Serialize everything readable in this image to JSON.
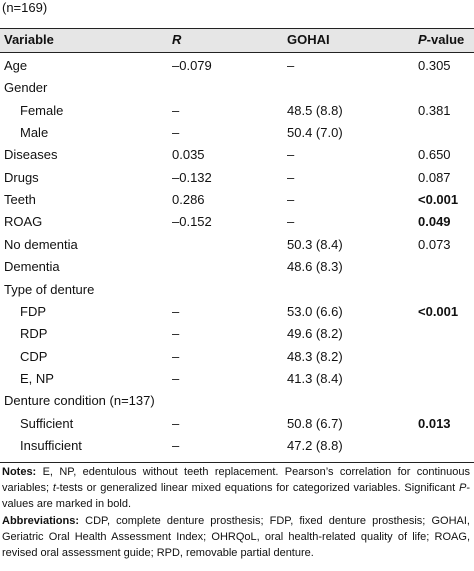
{
  "caption": "(n=169)",
  "header": [
    "Variable",
    "R",
    "GOHAI",
    [
      "P",
      "-value"
    ]
  ],
  "rows": [
    {
      "cells": [
        "Age",
        "–0.079",
        "–",
        "0.305"
      ]
    },
    {
      "cells": [
        "Gender",
        null,
        null,
        null
      ]
    },
    {
      "cells": [
        "Female",
        "–",
        "48.5 (8.8)",
        "0.381"
      ],
      "indent": true
    },
    {
      "cells": [
        "Male",
        "–",
        "50.4 (7.0)",
        null
      ],
      "indent": true
    },
    {
      "cells": [
        "Diseases",
        "0.035",
        "–",
        "0.650"
      ]
    },
    {
      "cells": [
        "Drugs",
        "–0.132",
        "–",
        "0.087"
      ]
    },
    {
      "cells": [
        "Teeth",
        "0.286",
        "–",
        "<0.001"
      ],
      "bold": true
    },
    {
      "cells": [
        "ROAG",
        "–0.152",
        "–",
        "0.049"
      ],
      "bold": true
    },
    {
      "cells": [
        "No dementia",
        null,
        "50.3 (8.4)",
        "0.073"
      ]
    },
    {
      "cells": [
        "Dementia",
        null,
        "48.6 (8.3)",
        null
      ]
    },
    {
      "cells": [
        "Type of denture",
        null,
        null,
        null
      ]
    },
    {
      "cells": [
        "FDP",
        "–",
        "53.0 (6.6)",
        "<0.001"
      ],
      "indent": true,
      "bold": true
    },
    {
      "cells": [
        "RDP",
        "–",
        "49.6 (8.2)",
        null
      ],
      "indent": true
    },
    {
      "cells": [
        "CDP",
        "–",
        "48.3 (8.2)",
        null
      ],
      "indent": true
    },
    {
      "cells": [
        "E, NP",
        "–",
        "41.3 (8.4)",
        null
      ],
      "indent": true
    },
    {
      "cells": [
        "Denture condition (n=137)",
        null,
        null,
        null
      ]
    },
    {
      "cells": [
        "Sufficient",
        "–",
        "50.8 (6.7)",
        "0.013"
      ],
      "indent": true,
      "bold": true
    },
    {
      "cells": [
        "Insufficient",
        "–",
        "47.2 (8.8)",
        null
      ],
      "indent": true
    }
  ],
  "notes": {
    "label": "Notes:",
    "parts": [
      " E, NP, edentulous without teeth replacement. Pearson’s correlation for continuous variables; ",
      "t",
      "-tests or generalized linear mixed equations for categorized variables. Significant ",
      "P",
      "-values are marked in bold."
    ]
  },
  "abbreviations": {
    "label": "Abbreviations:",
    "text": " CDP, complete denture prosthesis; FDP, fixed denture prosthesis; GOHAI, Geriatric Oral Health Assessment Index; OHRQoL, oral health-related quality of life; ROAG, revised oral assessment guide; RPD, removable partial denture."
  }
}
